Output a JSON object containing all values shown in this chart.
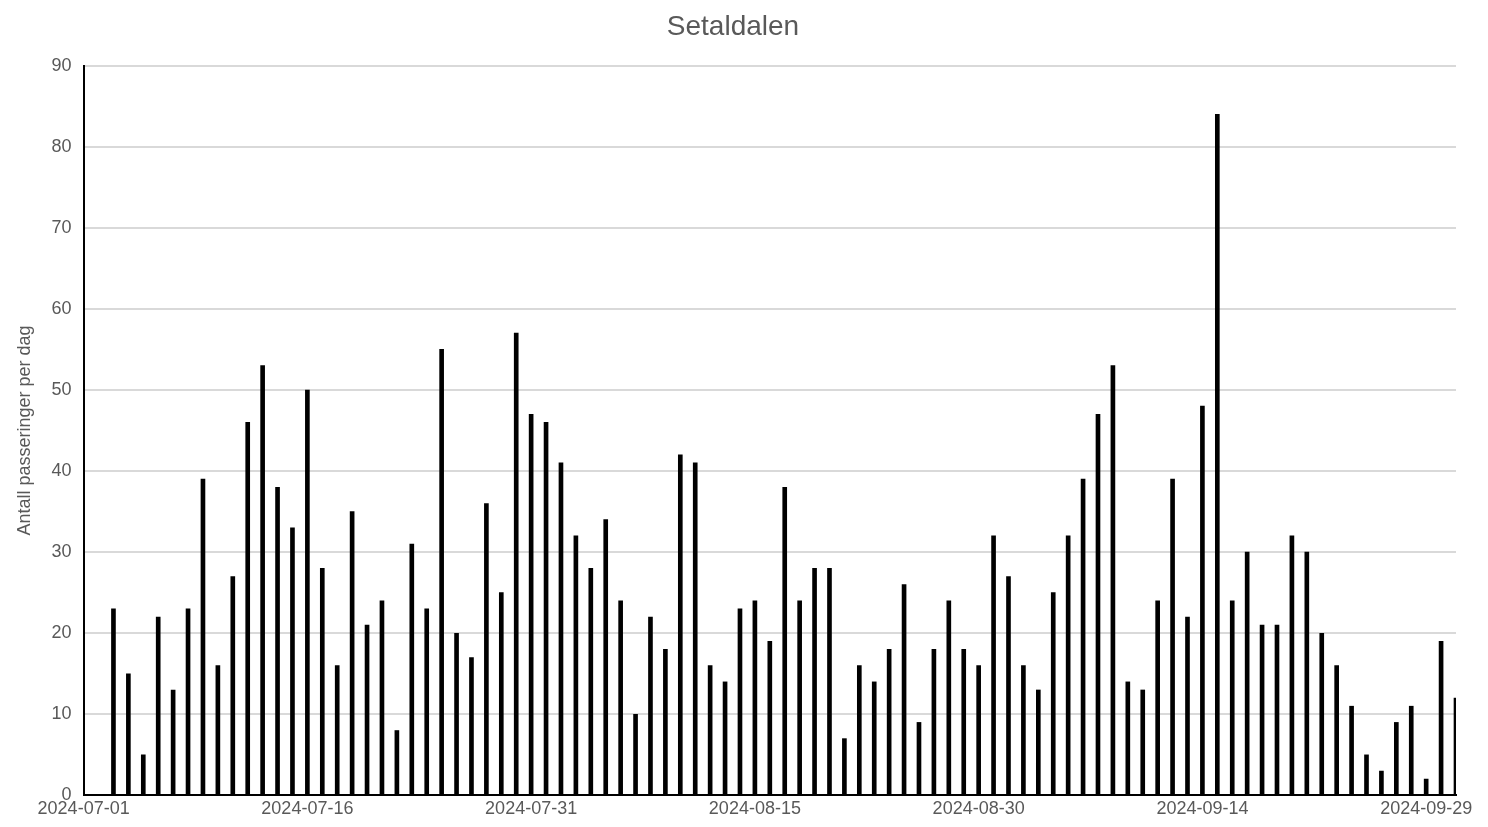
{
  "chart_data": {
    "type": "bar",
    "title": "Setaldalen",
    "ylabel": "Antall passeringer per dag",
    "x": [
      "2024-07-03",
      "2024-07-04",
      "2024-07-05",
      "2024-07-06",
      "2024-07-07",
      "2024-07-08",
      "2024-07-09",
      "2024-07-10",
      "2024-07-11",
      "2024-07-12",
      "2024-07-13",
      "2024-07-14",
      "2024-07-15",
      "2024-07-16",
      "2024-07-17",
      "2024-07-18",
      "2024-07-19",
      "2024-07-20",
      "2024-07-21",
      "2024-07-22",
      "2024-07-23",
      "2024-07-24",
      "2024-07-25",
      "2024-07-26",
      "2024-07-27",
      "2024-07-28",
      "2024-07-29",
      "2024-07-30",
      "2024-07-31",
      "2024-08-01",
      "2024-08-02",
      "2024-08-03",
      "2024-08-04",
      "2024-08-05",
      "2024-08-06",
      "2024-08-07",
      "2024-08-08",
      "2024-08-09",
      "2024-08-10",
      "2024-08-11",
      "2024-08-12",
      "2024-08-13",
      "2024-08-14",
      "2024-08-15",
      "2024-08-16",
      "2024-08-17",
      "2024-08-18",
      "2024-08-19",
      "2024-08-20",
      "2024-08-21",
      "2024-08-22",
      "2024-08-23",
      "2024-08-24",
      "2024-08-25",
      "2024-08-26",
      "2024-08-27",
      "2024-08-28",
      "2024-08-29",
      "2024-08-30",
      "2024-08-31",
      "2024-09-01",
      "2024-09-02",
      "2024-09-03",
      "2024-09-04",
      "2024-09-05",
      "2024-09-06",
      "2024-09-07",
      "2024-09-08",
      "2024-09-09",
      "2024-09-10",
      "2024-09-11",
      "2024-09-12",
      "2024-09-13",
      "2024-09-14",
      "2024-09-15",
      "2024-09-16",
      "2024-09-17",
      "2024-09-18",
      "2024-09-19",
      "2024-09-20",
      "2024-09-21",
      "2024-09-22",
      "2024-09-23",
      "2024-09-24",
      "2024-09-25",
      "2024-09-26",
      "2024-09-27",
      "2024-09-28",
      "2024-09-29",
      "2024-09-30",
      "2024-10-01"
    ],
    "values": [
      23,
      15,
      5,
      22,
      13,
      23,
      39,
      16,
      27,
      46,
      53,
      38,
      33,
      50,
      28,
      16,
      35,
      21,
      24,
      8,
      31,
      23,
      55,
      20,
      17,
      36,
      25,
      57,
      47,
      46,
      41,
      32,
      28,
      34,
      24,
      10,
      22,
      18,
      42,
      41,
      16,
      14,
      23,
      24,
      19,
      38,
      24,
      28,
      28,
      7,
      16,
      14,
      18,
      26,
      9,
      18,
      24,
      18,
      16,
      32,
      27,
      16,
      13,
      25,
      32,
      39,
      47,
      53,
      14,
      13,
      24,
      39,
      22,
      48,
      84,
      24,
      30,
      21,
      21,
      32,
      30,
      20,
      16,
      11,
      5,
      3,
      9,
      11,
      2,
      19,
      12
    ],
    "color": "#000000",
    "xlim": [
      "2024-07-01",
      "2024-10-01"
    ],
    "xticks": [
      "2024-07-01",
      "2024-07-16",
      "2024-07-31",
      "2024-08-15",
      "2024-08-30",
      "2024-09-14",
      "2024-09-29"
    ],
    "ylim": [
      0,
      90
    ],
    "yticks": [
      0,
      10,
      20,
      30,
      40,
      50,
      60,
      70,
      80,
      90
    ],
    "grid": "y"
  }
}
